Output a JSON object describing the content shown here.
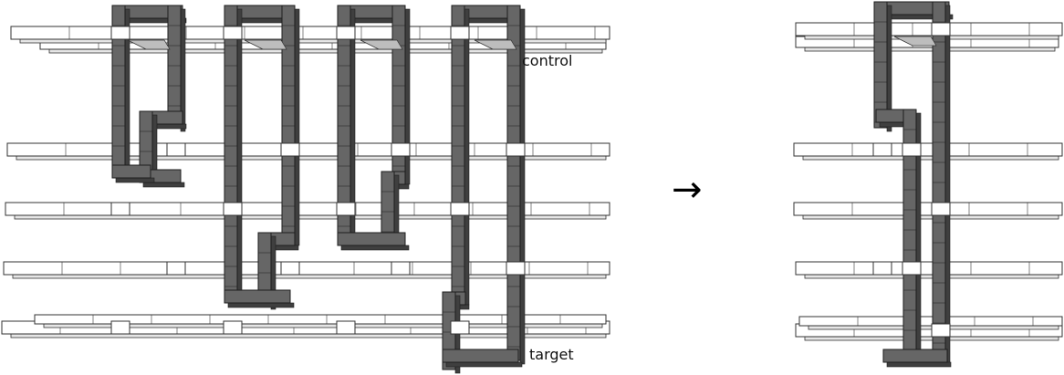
{
  "diagram": {
    "title": "",
    "labels": {
      "control": "control",
      "target": "target",
      "arrow": "→"
    },
    "colors": {
      "bar_fill": "#ffffff",
      "bar_side": "#e6e6e6",
      "bar_stroke": "#333333",
      "loop_fill": "#666666",
      "loop_side": "#3f3f3f",
      "loop_stroke": "#1e1e1e"
    },
    "left_panel": {
      "qubit_bars": 5,
      "loops": 4,
      "bars": [
        {
          "role": "control"
        },
        {
          "role": "intermediate"
        },
        {
          "role": "intermediate"
        },
        {
          "role": "intermediate"
        },
        {
          "role": "target"
        }
      ]
    },
    "right_panel": {
      "qubit_bars": 5,
      "loops": 1,
      "bars": [
        {
          "role": "control"
        },
        {
          "role": "intermediate"
        },
        {
          "role": "intermediate"
        },
        {
          "role": "intermediate"
        },
        {
          "role": "target"
        }
      ]
    }
  }
}
